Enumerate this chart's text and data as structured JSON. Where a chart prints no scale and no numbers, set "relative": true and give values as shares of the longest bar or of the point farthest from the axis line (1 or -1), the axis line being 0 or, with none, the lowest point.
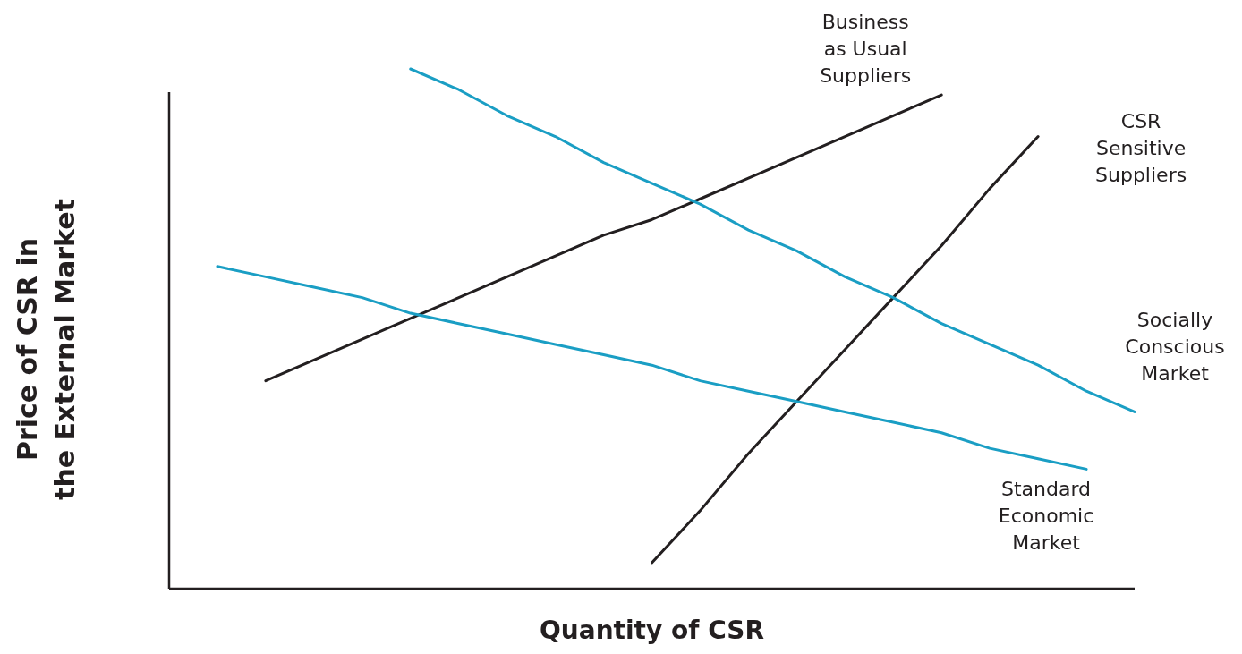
{
  "chart_data": {
    "type": "line",
    "relative": true,
    "xlabel": "Quantity of CSR",
    "ylabel": "Price of CSR in the External Market",
    "categories": [
      null,
      null,
      null,
      null,
      null,
      null,
      null,
      null,
      null,
      null,
      null,
      null,
      null,
      null,
      null,
      null,
      null,
      null,
      null,
      null,
      null
    ],
    "series": [
      {
        "name": "Business as Usual Suppliers",
        "color": "#231f20",
        "values": [
          null,
          null,
          0.4,
          0.44,
          0.48,
          0.52,
          0.56,
          0.6,
          0.64,
          0.68,
          0.71,
          0.75,
          0.79,
          0.83,
          0.87,
          0.91,
          0.95,
          null,
          null,
          null,
          null
        ]
      },
      {
        "name": "CSR Sensitive Suppliers",
        "color": "#231f20",
        "values": [
          null,
          null,
          null,
          null,
          null,
          null,
          null,
          null,
          null,
          null,
          0.05,
          0.15,
          0.26,
          0.36,
          0.46,
          0.56,
          0.66,
          0.77,
          0.87,
          null,
          null
        ]
      },
      {
        "name": "Socially Conscious Market",
        "color": "#1a9ec4",
        "values": [
          null,
          null,
          null,
          null,
          null,
          1.0,
          0.96,
          0.91,
          0.87,
          0.82,
          0.78,
          0.74,
          0.69,
          0.65,
          0.6,
          0.56,
          0.51,
          0.47,
          0.43,
          0.38,
          0.34
        ]
      },
      {
        "name": "Standard Economic Market",
        "color": "#1a9ec4",
        "values": [
          null,
          0.62,
          0.6,
          0.58,
          0.56,
          0.53,
          0.51,
          0.49,
          0.47,
          0.45,
          0.43,
          0.4,
          0.38,
          0.36,
          0.34,
          0.32,
          0.3,
          0.27,
          0.25,
          0.23,
          null
        ]
      }
    ]
  }
}
